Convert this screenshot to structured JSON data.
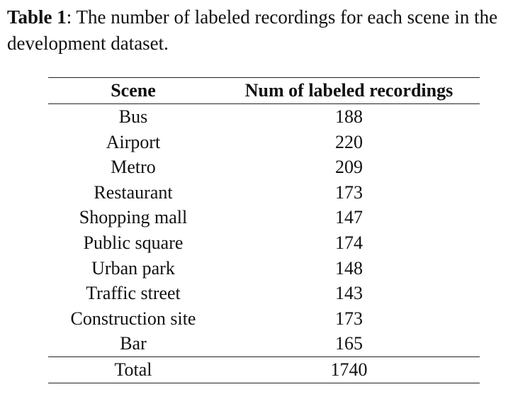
{
  "caption": {
    "label": "Table 1",
    "text": ": The number of labeled recordings for each scene in the development dataset."
  },
  "table": {
    "headers": [
      "Scene",
      "Num of labeled recordings"
    ],
    "rows": [
      [
        "Bus",
        "188"
      ],
      [
        "Airport",
        "220"
      ],
      [
        "Metro",
        "209"
      ],
      [
        "Restaurant",
        "173"
      ],
      [
        "Shopping mall",
        "147"
      ],
      [
        "Public square",
        "174"
      ],
      [
        "Urban park",
        "148"
      ],
      [
        "Traffic street",
        "143"
      ],
      [
        "Construction site",
        "173"
      ],
      [
        "Bar",
        "165"
      ]
    ],
    "total": [
      "Total",
      "1740"
    ]
  }
}
